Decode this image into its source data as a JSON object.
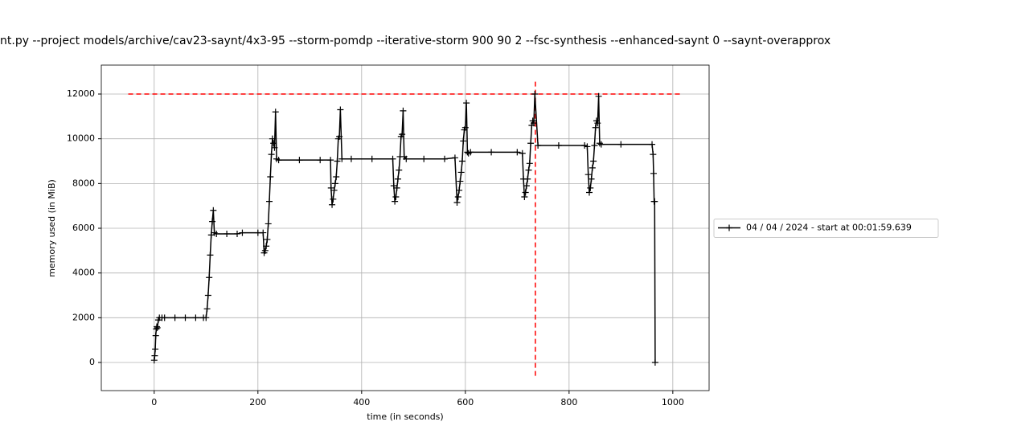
{
  "chart_data": {
    "type": "line",
    "title": "nt.py --project models/archive/cav23-saynt/4x3-95 --storm-pomdp --iterative-storm 900 90 2 --fsc-synthesis --enhanced-saynt 0 --saynt-overapprox",
    "x_label": "time (in seconds)",
    "y_label": "memory used (in MiB)",
    "x": [
      0,
      1,
      2,
      3,
      4,
      5,
      6,
      8,
      10,
      15,
      20,
      40,
      60,
      80,
      95,
      100,
      102,
      104,
      106,
      108,
      110,
      112,
      114,
      116,
      120,
      140,
      160,
      170,
      200,
      210,
      212,
      214,
      216,
      218,
      220,
      222,
      224,
      226,
      228,
      230,
      232,
      234,
      236,
      240,
      280,
      320,
      340,
      341,
      343,
      345,
      347,
      349,
      351,
      353,
      355,
      357,
      359,
      362,
      380,
      420,
      460,
      462,
      464,
      466,
      468,
      470,
      472,
      474,
      476,
      478,
      480,
      482,
      486,
      520,
      560,
      580,
      584,
      586,
      588,
      590,
      592,
      594,
      596,
      598,
      600,
      602,
      604,
      606,
      610,
      650,
      700,
      710,
      712,
      714,
      716,
      718,
      720,
      722,
      724,
      726,
      728,
      730,
      732,
      734,
      740,
      780,
      830,
      835,
      837,
      839,
      841,
      843,
      845,
      847,
      849,
      851,
      853,
      855,
      857,
      859,
      862,
      900,
      960,
      962,
      963,
      964,
      965,
      966
    ],
    "series": [
      {
        "name": "04 / 04 / 2024 - start at 00:01:59.639",
        "color": "#000000",
        "values": [
          100,
          300,
          600,
          1200,
          1500,
          1600,
          1550,
          1900,
          2000,
          2000,
          2000,
          2000,
          2000,
          2000,
          2000,
          2000,
          2400,
          3000,
          3800,
          4800,
          5700,
          6300,
          6800,
          5800,
          5750,
          5750,
          5750,
          5800,
          5800,
          5800,
          4900,
          5000,
          5200,
          5500,
          6200,
          7200,
          8300,
          9300,
          10000,
          9800,
          9600,
          11200,
          9100,
          9050,
          9050,
          9050,
          9050,
          7800,
          7050,
          7300,
          7700,
          8000,
          8300,
          9000,
          10000,
          10100,
          11300,
          9100,
          9100,
          9100,
          9100,
          7900,
          7200,
          7400,
          7800,
          8200,
          8600,
          9200,
          10100,
          10200,
          11250,
          9200,
          9100,
          9100,
          9100,
          9150,
          7150,
          7400,
          7700,
          8100,
          8500,
          9000,
          9900,
          10400,
          10500,
          11600,
          9400,
          9350,
          9400,
          9400,
          9400,
          9350,
          8200,
          7400,
          7600,
          7900,
          8200,
          8600,
          8900,
          9800,
          10600,
          10800,
          10700,
          12000,
          9700,
          9700,
          9700,
          9650,
          8400,
          7600,
          7800,
          8200,
          8700,
          9000,
          9700,
          10500,
          10800,
          10700,
          11900,
          9800,
          9750,
          9750,
          9750,
          9300,
          8450,
          7200,
          7200,
          0
        ]
      }
    ],
    "reference_lines": [
      {
        "orientation": "horizontal",
        "value": 12000,
        "from": -50,
        "to": 1015,
        "color": "#ff0000"
      },
      {
        "orientation": "vertical",
        "value": 735,
        "from": -600,
        "to": 12600,
        "color": "#ff0000"
      }
    ],
    "xlim": [
      -102,
      1070
    ],
    "ylim": [
      -1258,
      13294
    ],
    "xticks": [
      0,
      200,
      400,
      600,
      800,
      1000
    ],
    "yticks": [
      0,
      2000,
      4000,
      6000,
      8000,
      10000,
      12000
    ],
    "grid": true,
    "legend": "outside right"
  }
}
